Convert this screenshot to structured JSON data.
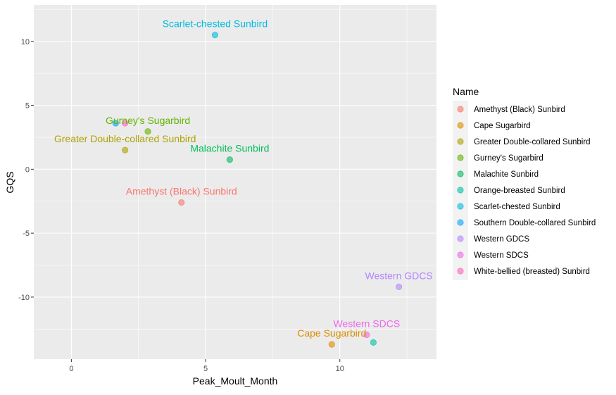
{
  "chart_data": {
    "type": "scatter",
    "title": "",
    "xlabel": "Peak_Moult_Month",
    "ylabel": "GQS",
    "xlim": [
      -1.4,
      13.6
    ],
    "ylim": [
      -14.85,
      12.85
    ],
    "x_ticks": [
      0,
      5,
      10
    ],
    "x_tick_labels": [
      "0",
      "5",
      "10"
    ],
    "y_ticks": [
      -10,
      -5,
      0,
      5,
      10
    ],
    "y_tick_labels": [
      "-10",
      "-5",
      "0",
      "5",
      "10"
    ],
    "grid": true,
    "legend_position": "right",
    "legend_title": "Name",
    "series": [
      {
        "name": "Amethyst (Black) Sunbird",
        "color": "#F8766D",
        "x": 4.1,
        "y": -2.6,
        "label": "Amethyst (Black) Sunbird"
      },
      {
        "name": "Cape Sugarbird",
        "color": "#DB8E00",
        "x": 9.7,
        "y": -13.7,
        "label": "Cape Sugarbird"
      },
      {
        "name": "Greater Double-collared Sunbird",
        "color": "#AEA200",
        "x": 2.0,
        "y": 1.5,
        "label": "Greater Double-collared Sunbird"
      },
      {
        "name": "Gurney's Sugarbird",
        "color": "#64B200",
        "x": 2.85,
        "y": 2.95,
        "label": "Gurney's Sugarbird"
      },
      {
        "name": "Malachite Sunbird",
        "color": "#00BD5C",
        "x": 5.9,
        "y": 0.75,
        "label": "Malachite Sunbird"
      },
      {
        "name": "Orange-breasted Sunbird",
        "color": "#00C1A7",
        "x": 11.25,
        "y": -13.55,
        "label": ""
      },
      {
        "name": "Scarlet-chested Sunbird",
        "color": "#00BADE",
        "x": 5.35,
        "y": 10.5,
        "label": "Scarlet-chested Sunbird"
      },
      {
        "name": "Southern Double-collared Sunbird",
        "color": "#00A6FF",
        "x": 1.65,
        "y": 3.6,
        "label": ""
      },
      {
        "name": "Western GDCS",
        "color": "#B385FF",
        "x": 12.2,
        "y": -9.2,
        "label": "Western GDCS"
      },
      {
        "name": "Western SDCS",
        "color": "#EF67EB",
        "x": 11.0,
        "y": -12.95,
        "label": "Western SDCS"
      },
      {
        "name": "White-bellied (breasted) Sunbird",
        "color": "#FF63B6",
        "x": 2.0,
        "y": 3.6,
        "label": ""
      }
    ]
  }
}
